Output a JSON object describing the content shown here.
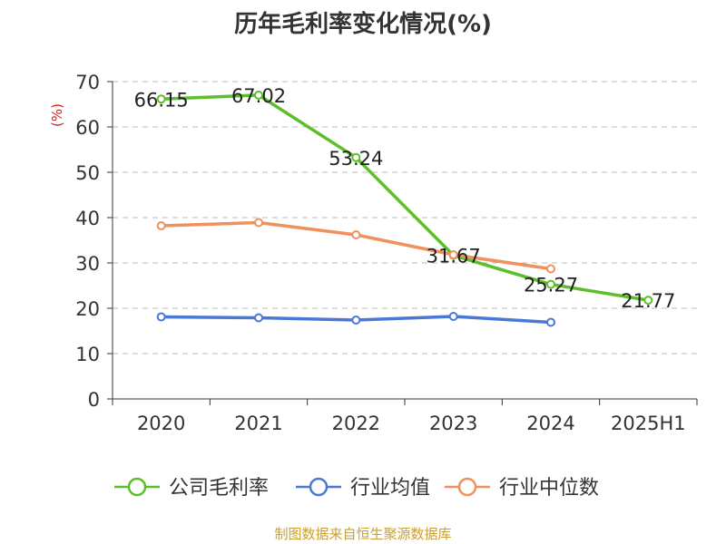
{
  "title": "历年毛利率变化情况(%)",
  "source": "制图数据来自恒生聚源数据库",
  "colors": {
    "company": "#5cbf2a",
    "avg": "#4a78d6",
    "median": "#f0905c",
    "axis": "#333333",
    "grid": "#bbbbbb"
  },
  "chart_data": {
    "type": "line",
    "title": "历年毛利率变化情况(%)",
    "ylabel": "(%)",
    "xlabel": "",
    "categories": [
      "2020",
      "2021",
      "2022",
      "2023",
      "2024",
      "2025H1"
    ],
    "ylim": [
      0,
      70
    ],
    "yticks": [
      0,
      10,
      20,
      30,
      40,
      50,
      60,
      70
    ],
    "grid": "horizontal-dashed",
    "legend": "bottom",
    "series": [
      {
        "name": "公司毛利率",
        "color": "#5cbf2a",
        "values": [
          66.15,
          67.02,
          53.24,
          31.67,
          25.27,
          21.77
        ],
        "labels": [
          "66.15",
          "67.02",
          "53.24",
          "31.67",
          "25.27",
          "21.77"
        ]
      },
      {
        "name": "行业均值",
        "color": "#4a78d6",
        "values": [
          18.1,
          17.9,
          17.4,
          18.2,
          16.9,
          null
        ]
      },
      {
        "name": "行业中位数",
        "color": "#f0905c",
        "values": [
          38.2,
          38.9,
          36.2,
          31.8,
          28.7,
          null
        ]
      }
    ]
  }
}
